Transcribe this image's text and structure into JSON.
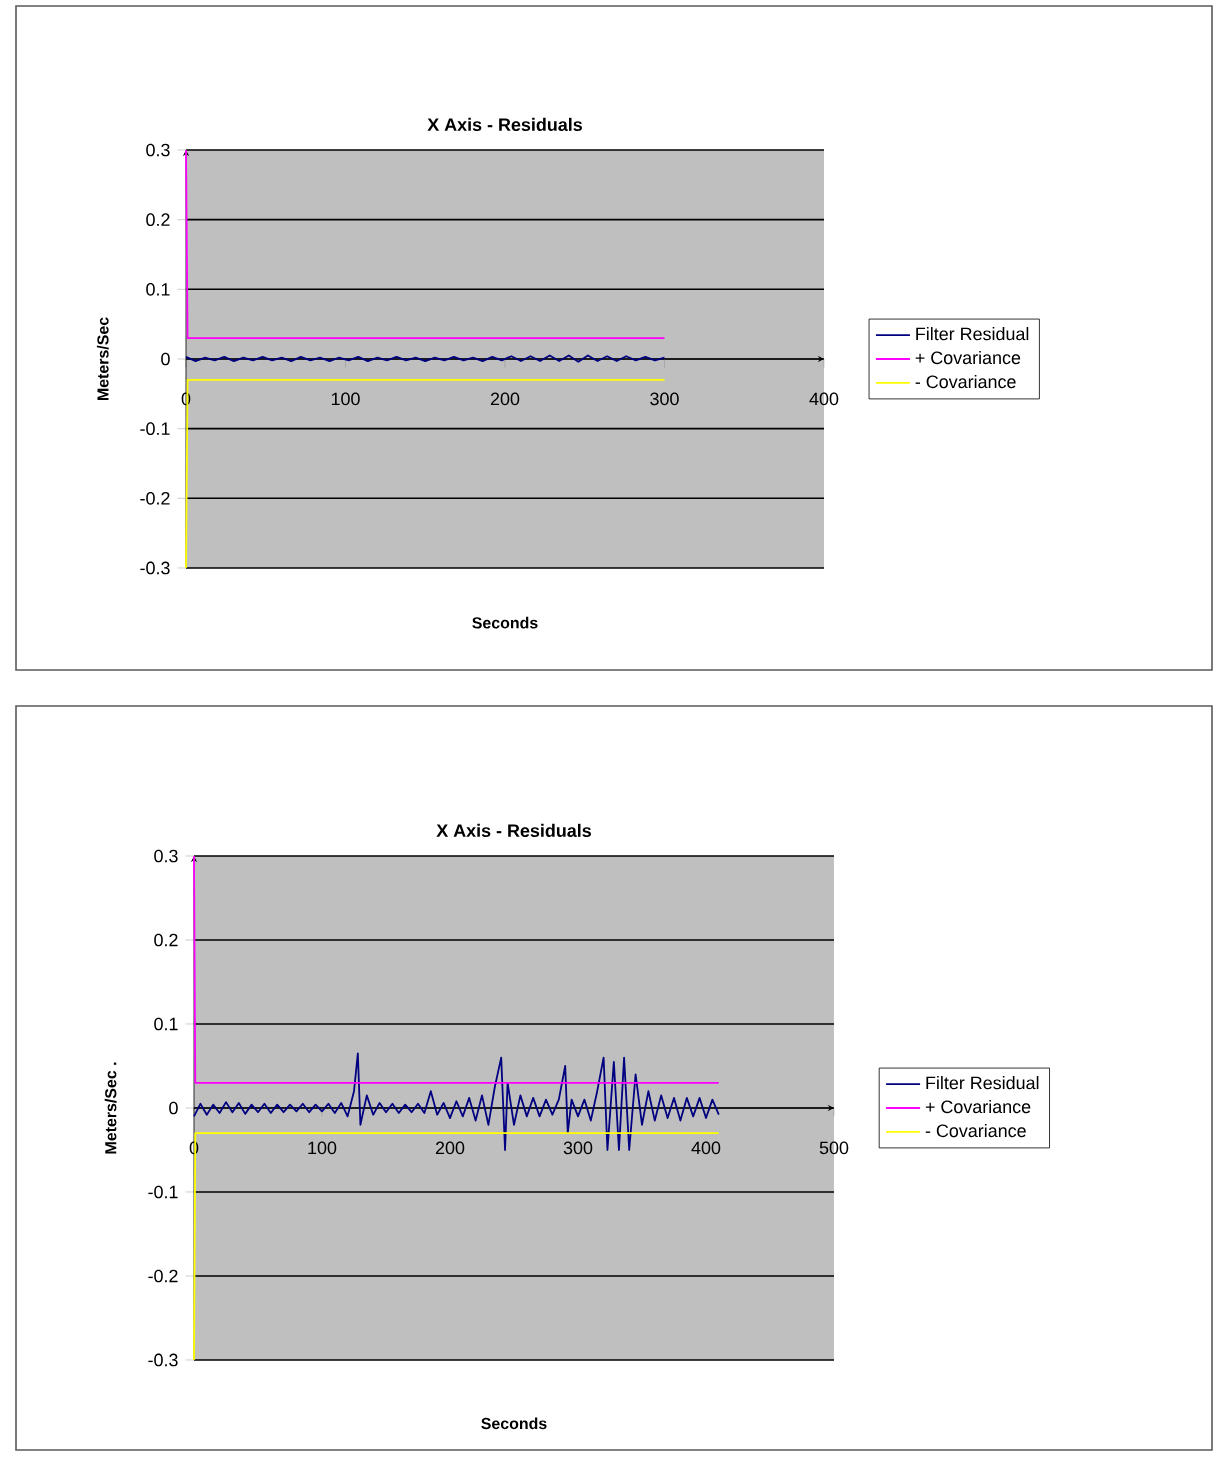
{
  "chart_data": [
    {
      "type": "line",
      "title": "X Axis - Residuals",
      "xlabel": "Seconds",
      "ylabel": "Meters/Sec",
      "xlim": [
        0,
        400
      ],
      "ylim": [
        -0.3,
        0.3
      ],
      "xticks": [
        0,
        100,
        200,
        300,
        400
      ],
      "yticks": [
        -0.3,
        -0.2,
        -0.1,
        0,
        0.1,
        0.2,
        0.3
      ],
      "grid": "y",
      "legend": "right",
      "marker": "none",
      "line_style": "solid",
      "series": [
        {
          "name": "Filter Residual",
          "color": "#000080",
          "x": [
            0,
            6,
            12,
            18,
            24,
            30,
            36,
            42,
            48,
            54,
            60,
            66,
            72,
            78,
            84,
            90,
            96,
            102,
            108,
            114,
            120,
            126,
            132,
            138,
            144,
            150,
            156,
            162,
            168,
            174,
            180,
            186,
            192,
            198,
            204,
            210,
            216,
            222,
            228,
            234,
            240,
            246,
            252,
            258,
            264,
            270,
            276,
            282,
            288,
            294,
            300
          ],
          "values": [
            0.003,
            -0.003,
            0.002,
            -0.002,
            0.003,
            -0.003,
            0.002,
            -0.002,
            0.003,
            -0.002,
            0.002,
            -0.003,
            0.003,
            -0.002,
            0.002,
            -0.003,
            0.002,
            -0.002,
            0.003,
            -0.003,
            0.002,
            -0.002,
            0.003,
            -0.002,
            0.002,
            -0.003,
            0.002,
            -0.002,
            0.003,
            -0.002,
            0.002,
            -0.003,
            0.003,
            -0.002,
            0.004,
            -0.003,
            0.004,
            -0.003,
            0.005,
            -0.003,
            0.005,
            -0.004,
            0.005,
            -0.003,
            0.004,
            -0.003,
            0.004,
            -0.002,
            0.003,
            -0.002,
            0.002
          ]
        },
        {
          "name": "+ Covariance",
          "color": "#ff00ff",
          "x": [
            0,
            1,
            300
          ],
          "values": [
            0.3,
            0.03,
            0.03
          ]
        },
        {
          "name": "- Covariance",
          "color": "#ffff00",
          "x": [
            0,
            1,
            300
          ],
          "values": [
            -0.3,
            -0.03,
            -0.03
          ]
        }
      ]
    },
    {
      "type": "line",
      "title": "X Axis - Residuals",
      "xlabel": "Seconds",
      "ylabel": "Meters/Sec .",
      "xlim": [
        0,
        500
      ],
      "ylim": [
        -0.3,
        0.3
      ],
      "xticks": [
        0,
        100,
        200,
        300,
        400,
        500
      ],
      "yticks": [
        -0.3,
        -0.2,
        -0.1,
        0,
        0.1,
        0.2,
        0.3
      ],
      "grid": "y",
      "legend": "right",
      "marker": "none",
      "line_style": "solid",
      "series": [
        {
          "name": "Filter Residual",
          "color": "#000080",
          "x": [
            0,
            5,
            10,
            15,
            20,
            25,
            30,
            35,
            40,
            45,
            50,
            55,
            60,
            65,
            70,
            75,
            80,
            85,
            90,
            95,
            100,
            105,
            110,
            115,
            120,
            125,
            128,
            130,
            135,
            140,
            145,
            150,
            155,
            160,
            165,
            170,
            175,
            180,
            185,
            190,
            195,
            200,
            205,
            210,
            215,
            220,
            225,
            230,
            235,
            240,
            243,
            245,
            250,
            255,
            260,
            265,
            270,
            275,
            280,
            285,
            290,
            292,
            295,
            300,
            305,
            310,
            315,
            320,
            323,
            328,
            332,
            336,
            340,
            345,
            350,
            355,
            360,
            365,
            370,
            375,
            380,
            385,
            390,
            395,
            400,
            405,
            410
          ],
          "values": [
            -0.01,
            0.005,
            -0.008,
            0.004,
            -0.006,
            0.007,
            -0.005,
            0.006,
            -0.007,
            0.004,
            -0.005,
            0.005,
            -0.006,
            0.004,
            -0.005,
            0.004,
            -0.004,
            0.005,
            -0.005,
            0.004,
            -0.004,
            0.005,
            -0.006,
            0.006,
            -0.01,
            0.02,
            0.065,
            -0.02,
            0.015,
            -0.008,
            0.006,
            -0.005,
            0.005,
            -0.006,
            0.004,
            -0.005,
            0.005,
            -0.006,
            0.02,
            -0.008,
            0.006,
            -0.012,
            0.008,
            -0.01,
            0.012,
            -0.015,
            0.015,
            -0.02,
            0.025,
            0.06,
            -0.05,
            0.03,
            -0.02,
            0.015,
            -0.01,
            0.012,
            -0.01,
            0.01,
            -0.008,
            0.01,
            0.05,
            -0.03,
            0.01,
            -0.01,
            0.01,
            -0.015,
            0.02,
            0.06,
            -0.05,
            0.055,
            -0.05,
            0.06,
            -0.05,
            0.04,
            -0.02,
            0.02,
            -0.015,
            0.015,
            -0.012,
            0.012,
            -0.015,
            0.012,
            -0.01,
            0.012,
            -0.012,
            0.01,
            -0.008
          ]
        },
        {
          "name": "+ Covariance",
          "color": "#ff00ff",
          "x": [
            0,
            1,
            410
          ],
          "values": [
            0.3,
            0.03,
            0.03
          ]
        },
        {
          "name": "- Covariance",
          "color": "#ffff00",
          "x": [
            0,
            1,
            410
          ],
          "values": [
            -0.3,
            -0.03,
            -0.03
          ]
        }
      ]
    }
  ]
}
